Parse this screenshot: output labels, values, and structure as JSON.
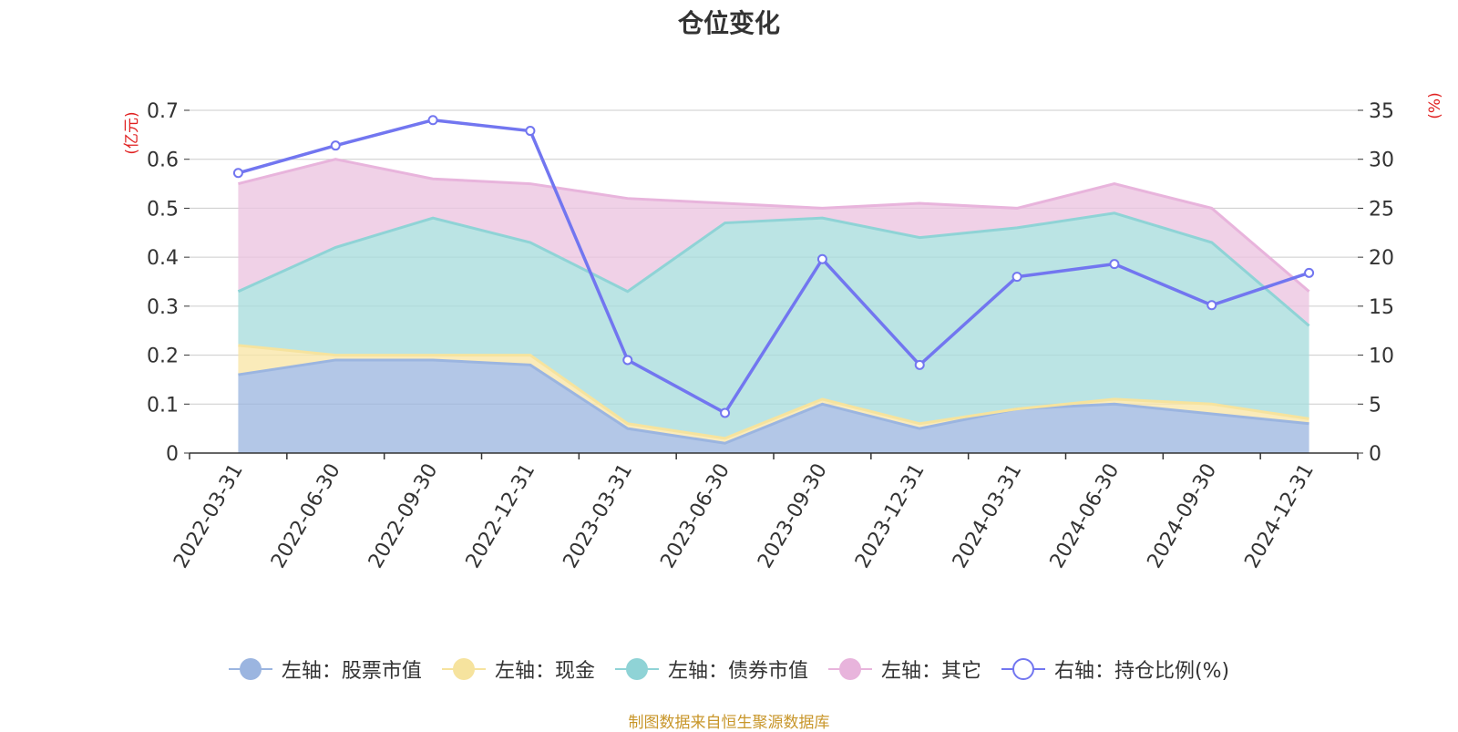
{
  "title": "仓位变化",
  "source": "制图数据来自恒生聚源数据库",
  "chart_data": {
    "type": "area",
    "title": "仓位变化",
    "categories": [
      "2022-03-31",
      "2022-06-30",
      "2022-09-30",
      "2022-12-31",
      "2023-03-31",
      "2023-06-30",
      "2023-09-30",
      "2023-12-31",
      "2024-03-31",
      "2024-06-30",
      "2024-09-30",
      "2024-12-31"
    ],
    "y_left": {
      "unit": "(亿元)",
      "ylim": [
        0,
        0.7
      ],
      "ticks": [
        "0",
        "0.1",
        "0.2",
        "0.3",
        "0.4",
        "0.5",
        "0.6",
        "0.7"
      ]
    },
    "y_right": {
      "unit": "(%)",
      "ylim": [
        0,
        35
      ],
      "ticks": [
        "0",
        "5",
        "10",
        "15",
        "20",
        "25",
        "30",
        "35"
      ]
    },
    "grid": true,
    "legend_position": "bottom",
    "stack_cumulative": [
      {
        "name": "左轴：股票市值",
        "color": "#9db7e0",
        "line": "#9bb5e0",
        "values": [
          0.16,
          0.19,
          0.19,
          0.18,
          0.05,
          0.02,
          0.1,
          0.05,
          0.09,
          0.1,
          0.08,
          0.06
        ]
      },
      {
        "name": "左轴：现金",
        "color": "#f8e6a6",
        "line": "#f6e39e",
        "values": [
          0.22,
          0.2,
          0.2,
          0.2,
          0.06,
          0.03,
          0.11,
          0.06,
          0.09,
          0.11,
          0.1,
          0.07
        ]
      },
      {
        "name": "左轴：债券市值",
        "color": "#a8dcdc",
        "line": "#8fd3d6",
        "values": [
          0.33,
          0.42,
          0.48,
          0.43,
          0.33,
          0.47,
          0.48,
          0.44,
          0.46,
          0.49,
          0.43,
          0.26
        ]
      },
      {
        "name": "左轴：其它",
        "color": "#ecc4e0",
        "line": "#e8b4dc",
        "values": [
          0.55,
          0.6,
          0.56,
          0.55,
          0.52,
          0.51,
          0.5,
          0.51,
          0.5,
          0.55,
          0.5,
          0.33
        ]
      }
    ],
    "line_series": {
      "name": "右轴：持仓比例(%)",
      "color": "#7276f0",
      "axis": "right",
      "values": [
        28.6,
        31.4,
        34.0,
        32.9,
        9.5,
        4.1,
        19.8,
        9.0,
        18.0,
        19.3,
        15.1,
        18.4
      ]
    }
  }
}
